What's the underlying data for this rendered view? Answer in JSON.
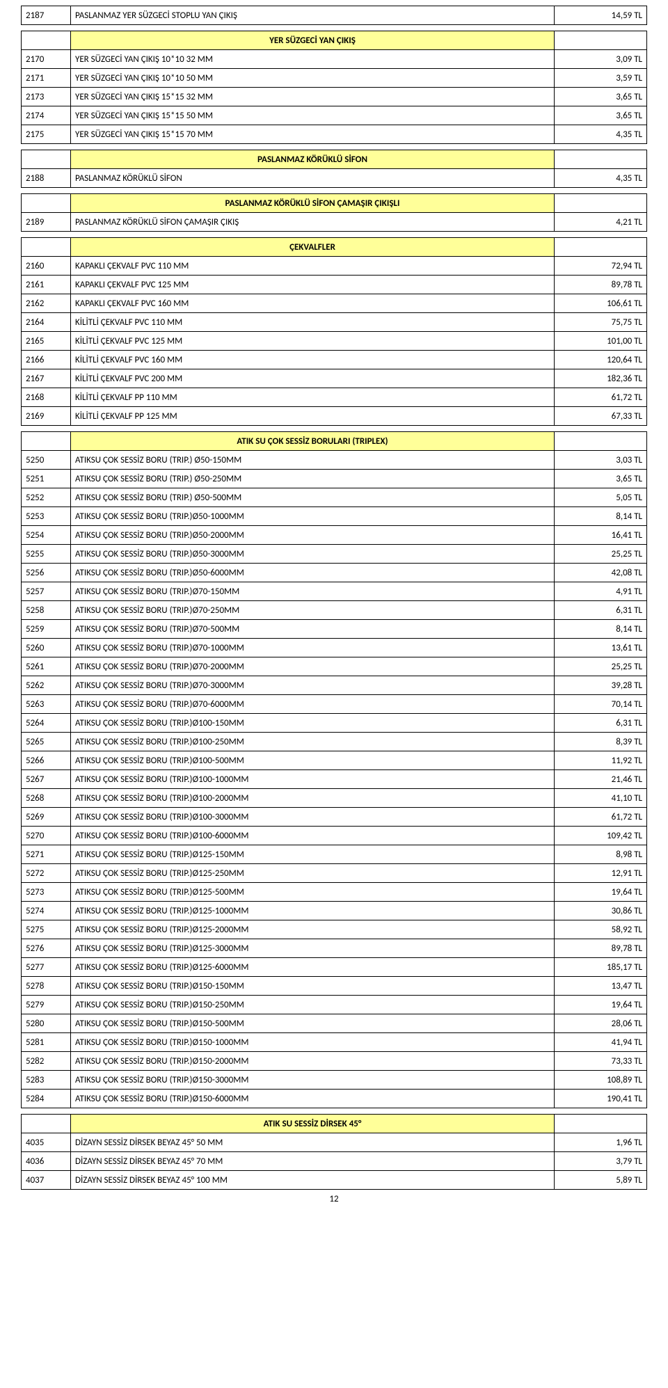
{
  "pageNumber": "12",
  "colors": {
    "headerBg": "#ffff99",
    "border": "#000000",
    "background": "#ffffff"
  },
  "sections": [
    {
      "preRows": [
        {
          "code": "2187",
          "desc": "PASLANMAZ YER SÜZGECİ STOPLU YAN ÇIKIŞ",
          "price": "14,59 TL"
        }
      ],
      "title": "YER SÜZGECİ YAN ÇIKIŞ",
      "rows": [
        {
          "code": "2170",
          "desc": "YER SÜZGECİ YAN ÇIKIŞ 10*10 32 MM",
          "price": "3,09 TL"
        },
        {
          "code": "2171",
          "desc": "YER SÜZGECİ YAN ÇIKIŞ 10*10 50 MM",
          "price": "3,59 TL"
        },
        {
          "code": "2173",
          "desc": "YER SÜZGECİ YAN ÇIKIŞ 15*15 32 MM",
          "price": "3,65 TL"
        },
        {
          "code": "2174",
          "desc": "YER SÜZGECİ YAN ÇIKIŞ 15*15 50 MM",
          "price": "3,65 TL"
        },
        {
          "code": "2175",
          "desc": "YER SÜZGECİ YAN ÇIKIŞ 15*15 70 MM",
          "price": "4,35 TL"
        }
      ]
    },
    {
      "title": "PASLANMAZ KÖRÜKLÜ SİFON",
      "rows": [
        {
          "code": "2188",
          "desc": "PASLANMAZ KÖRÜKLÜ SİFON",
          "price": "4,35 TL"
        }
      ]
    },
    {
      "title": "PASLANMAZ KÖRÜKLÜ SİFON ÇAMAŞIR ÇIKIŞLI",
      "rows": [
        {
          "code": "2189",
          "desc": "PASLANMAZ KÖRÜKLÜ SİFON ÇAMAŞIR ÇIKIŞ",
          "price": "4,21 TL"
        }
      ]
    },
    {
      "title": "ÇEKVALFLER",
      "rows": [
        {
          "code": "2160",
          "desc": "KAPAKLI ÇEKVALF PVC 110 MM",
          "price": "72,94 TL"
        },
        {
          "code": "2161",
          "desc": "KAPAKLI ÇEKVALF PVC 125 MM",
          "price": "89,78 TL"
        },
        {
          "code": "2162",
          "desc": "KAPAKLI ÇEKVALF PVC 160 MM",
          "price": "106,61 TL"
        },
        {
          "code": "2164",
          "desc": "KİLİTLİ ÇEKVALF PVC 110 MM",
          "price": "75,75 TL"
        },
        {
          "code": "2165",
          "desc": "KİLİTLİ ÇEKVALF PVC 125 MM",
          "price": "101,00 TL"
        },
        {
          "code": "2166",
          "desc": "KİLİTLİ ÇEKVALF PVC 160 MM",
          "price": "120,64 TL"
        },
        {
          "code": "2167",
          "desc": "KİLİTLİ ÇEKVALF PVC 200 MM",
          "price": "182,36 TL"
        },
        {
          "code": "2168",
          "desc": "KİLİTLİ ÇEKVALF PP 110 MM",
          "price": "61,72 TL"
        },
        {
          "code": "2169",
          "desc": "KİLİTLİ ÇEKVALF PP 125 MM",
          "price": "67,33 TL"
        }
      ]
    },
    {
      "title": "ATIK SU ÇOK SESSİZ BORULARI (TRIPLEX)",
      "rows": [
        {
          "code": "5250",
          "desc": "ATIKSU ÇOK SESSİZ BORU (TRIP.) Ø50-150MM",
          "price": "3,03 TL"
        },
        {
          "code": "5251",
          "desc": "ATIKSU ÇOK SESSİZ BORU (TRIP.) Ø50-250MM",
          "price": "3,65 TL"
        },
        {
          "code": "5252",
          "desc": "ATIKSU ÇOK SESSİZ BORU (TRIP.) Ø50-500MM",
          "price": "5,05 TL"
        },
        {
          "code": "5253",
          "desc": "ATIKSU ÇOK SESSİZ BORU (TRIP.)Ø50-1000MM",
          "price": "8,14 TL"
        },
        {
          "code": "5254",
          "desc": "ATIKSU ÇOK SESSİZ BORU (TRIP.)Ø50-2000MM",
          "price": "16,41 TL"
        },
        {
          "code": "5255",
          "desc": "ATIKSU ÇOK SESSİZ BORU (TRIP.)Ø50-3000MM",
          "price": "25,25 TL"
        },
        {
          "code": "5256",
          "desc": "ATIKSU ÇOK SESSİZ BORU (TRIP.)Ø50-6000MM",
          "price": "42,08 TL"
        },
        {
          "code": "5257",
          "desc": "ATIKSU ÇOK SESSİZ BORU (TRIP.)Ø70-150MM",
          "price": "4,91 TL"
        },
        {
          "code": "5258",
          "desc": "ATIKSU ÇOK SESSİZ BORU (TRIP.)Ø70-250MM",
          "price": "6,31 TL"
        },
        {
          "code": "5259",
          "desc": "ATIKSU ÇOK SESSİZ BORU (TRIP.)Ø70-500MM",
          "price": "8,14 TL"
        },
        {
          "code": "5260",
          "desc": "ATIKSU ÇOK SESSİZ BORU (TRIP.)Ø70-1000MM",
          "price": "13,61 TL"
        },
        {
          "code": "5261",
          "desc": "ATIKSU ÇOK SESSİZ BORU (TRIP.)Ø70-2000MM",
          "price": "25,25 TL"
        },
        {
          "code": "5262",
          "desc": "ATIKSU ÇOK SESSİZ BORU (TRIP.)Ø70-3000MM",
          "price": "39,28 TL"
        },
        {
          "code": "5263",
          "desc": "ATIKSU ÇOK SESSİZ BORU (TRIP.)Ø70-6000MM",
          "price": "70,14 TL"
        },
        {
          "code": "5264",
          "desc": "ATIKSU ÇOK SESSİZ BORU (TRIP.)Ø100-150MM",
          "price": "6,31 TL"
        },
        {
          "code": "5265",
          "desc": "ATIKSU ÇOK SESSİZ BORU (TRIP.)Ø100-250MM",
          "price": "8,39 TL"
        },
        {
          "code": "5266",
          "desc": "ATIKSU ÇOK SESSİZ BORU (TRIP.)Ø100-500MM",
          "price": "11,92 TL"
        },
        {
          "code": "5267",
          "desc": "ATIKSU ÇOK SESSİZ BORU (TRIP.)Ø100-1000MM",
          "price": "21,46 TL"
        },
        {
          "code": "5268",
          "desc": "ATIKSU ÇOK SESSİZ BORU (TRIP.)Ø100-2000MM",
          "price": "41,10 TL"
        },
        {
          "code": "5269",
          "desc": "ATIKSU ÇOK SESSİZ BORU (TRIP.)Ø100-3000MM",
          "price": "61,72 TL"
        },
        {
          "code": "5270",
          "desc": "ATIKSU ÇOK SESSİZ BORU (TRIP.)Ø100-6000MM",
          "price": "109,42 TL"
        },
        {
          "code": "5271",
          "desc": "ATIKSU ÇOK SESSİZ BORU (TRIP.)Ø125-150MM",
          "price": "8,98 TL"
        },
        {
          "code": "5272",
          "desc": "ATIKSU ÇOK SESSİZ BORU (TRIP.)Ø125-250MM",
          "price": "12,91 TL"
        },
        {
          "code": "5273",
          "desc": "ATIKSU ÇOK SESSİZ BORU (TRIP.)Ø125-500MM",
          "price": "19,64 TL"
        },
        {
          "code": "5274",
          "desc": "ATIKSU ÇOK SESSİZ BORU (TRIP.)Ø125-1000MM",
          "price": "30,86 TL"
        },
        {
          "code": "5275",
          "desc": "ATIKSU ÇOK SESSİZ BORU (TRIP.)Ø125-2000MM",
          "price": "58,92 TL"
        },
        {
          "code": "5276",
          "desc": "ATIKSU ÇOK SESSİZ BORU (TRIP.)Ø125-3000MM",
          "price": "89,78 TL"
        },
        {
          "code": "5277",
          "desc": "ATIKSU ÇOK SESSİZ BORU (TRIP.)Ø125-6000MM",
          "price": "185,17 TL"
        },
        {
          "code": "5278",
          "desc": "ATIKSU ÇOK SESSİZ BORU (TRIP.)Ø150-150MM",
          "price": "13,47 TL"
        },
        {
          "code": "5279",
          "desc": "ATIKSU ÇOK SESSİZ BORU (TRIP.)Ø150-250MM",
          "price": "19,64 TL"
        },
        {
          "code": "5280",
          "desc": "ATIKSU ÇOK SESSİZ BORU (TRIP.)Ø150-500MM",
          "price": "28,06 TL"
        },
        {
          "code": "5281",
          "desc": "ATIKSU ÇOK SESSİZ BORU (TRIP.)Ø150-1000MM",
          "price": "41,94 TL"
        },
        {
          "code": "5282",
          "desc": "ATIKSU ÇOK SESSİZ BORU (TRIP.)Ø150-2000MM",
          "price": "73,33 TL"
        },
        {
          "code": "5283",
          "desc": "ATIKSU ÇOK SESSİZ BORU (TRIP.)Ø150-3000MM",
          "price": "108,89 TL"
        },
        {
          "code": "5284",
          "desc": "ATIKSU ÇOK SESSİZ BORU (TRIP.)Ø150-6000MM",
          "price": "190,41 TL"
        }
      ]
    },
    {
      "title": "ATIK SU SESSİZ DİRSEK 45°",
      "rows": [
        {
          "code": "4035",
          "desc": "DİZAYN SESSİZ DİRSEK BEYAZ 45° 50 MM",
          "price": "1,96 TL"
        },
        {
          "code": "4036",
          "desc": "DİZAYN SESSİZ DİRSEK BEYAZ 45° 70 MM",
          "price": "3,79 TL"
        },
        {
          "code": "4037",
          "desc": "DİZAYN SESSİZ DİRSEK BEYAZ 45° 100 MM",
          "price": "5,89 TL"
        }
      ]
    }
  ]
}
